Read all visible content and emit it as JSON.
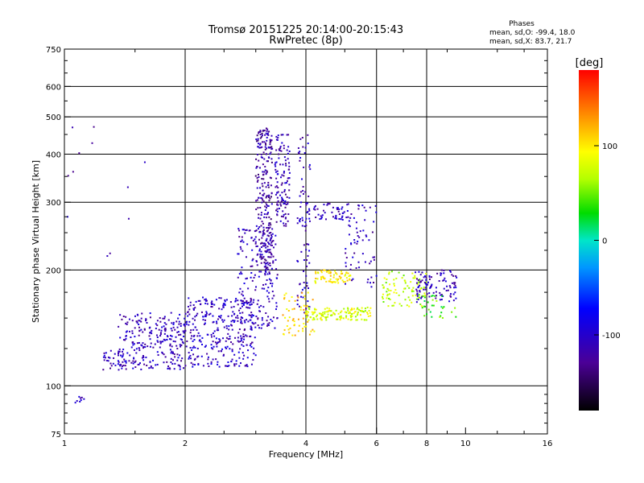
{
  "chart_data": {
    "type": "scatter",
    "title": "Tromsø 20151225 20:14:00-20:15:43",
    "subtitle": "RwPretec (8p)",
    "xlabel": "Frequency [MHz]",
    "ylabel": "Stationary phase Virtual Height [km]",
    "x_scale": "log",
    "y_scale": "log",
    "xlim": [
      1,
      16
    ],
    "ylim": [
      75,
      750
    ],
    "x_ticks": [
      1,
      2,
      4,
      6,
      8,
      10,
      16
    ],
    "y_ticks": [
      75,
      100,
      200,
      300,
      400,
      500,
      600,
      750
    ],
    "grid_x": [
      2,
      4,
      6,
      8
    ],
    "grid_y": [
      100,
      200,
      300,
      400,
      500,
      600
    ],
    "grid": true,
    "phase_stats": {
      "title": "Phases",
      "line_o": "mean, sd,O: -99.4, 18.0",
      "line_x": "mean, sd,X: 83.7, 21.7"
    },
    "colorbar": {
      "label": "[deg]",
      "ticks": [
        100,
        0,
        -100
      ],
      "range": [
        -180,
        180
      ]
    },
    "clusters": [
      {
        "x0": 1.36,
        "x1": 2.0,
        "y0": 110,
        "y1": 155,
        "phase": -110,
        "n": 260
      },
      {
        "x0": 1.25,
        "x1": 1.45,
        "y0": 110,
        "y1": 125,
        "phase": -110,
        "n": 30
      },
      {
        "x0": 2.0,
        "x1": 3.0,
        "y0": 112,
        "y1": 170,
        "phase": -105,
        "n": 320
      },
      {
        "x0": 2.7,
        "x1": 3.4,
        "y0": 140,
        "y1": 260,
        "phase": -110,
        "n": 200
      },
      {
        "x0": 3.0,
        "x1": 3.3,
        "y0": 200,
        "y1": 470,
        "phase": -120,
        "n": 240
      },
      {
        "x0": 3.35,
        "x1": 3.65,
        "y0": 260,
        "y1": 450,
        "phase": -115,
        "n": 120
      },
      {
        "x0": 3.8,
        "x1": 4.1,
        "y0": 150,
        "y1": 450,
        "phase": -110,
        "n": 80
      },
      {
        "x0": 3.5,
        "x1": 4.2,
        "y0": 135,
        "y1": 175,
        "phase": 110,
        "n": 60
      },
      {
        "x0": 4.0,
        "x1": 5.8,
        "y0": 148,
        "y1": 160,
        "phase": 80,
        "n": 130
      },
      {
        "x0": 4.2,
        "x1": 5.2,
        "y0": 185,
        "y1": 200,
        "phase": 100,
        "n": 70
      },
      {
        "x0": 4.0,
        "x1": 5.0,
        "y0": 270,
        "y1": 300,
        "phase": -110,
        "n": 50
      },
      {
        "x0": 5.0,
        "x1": 6.0,
        "y0": 180,
        "y1": 300,
        "phase": -110,
        "n": 70
      },
      {
        "x0": 6.2,
        "x1": 8.0,
        "y0": 160,
        "y1": 200,
        "phase": 70,
        "n": 90
      },
      {
        "x0": 7.5,
        "x1": 9.5,
        "y0": 165,
        "y1": 200,
        "phase": -110,
        "n": 100
      },
      {
        "x0": 7.8,
        "x1": 9.5,
        "y0": 150,
        "y1": 172,
        "phase": 40,
        "n": 30
      },
      {
        "x0": 1.0,
        "x1": 1.6,
        "y0": 200,
        "y1": 490,
        "phase": -110,
        "n": 12
      },
      {
        "x0": 1.06,
        "x1": 1.12,
        "y0": 90,
        "y1": 94,
        "phase": -110,
        "n": 8
      }
    ]
  }
}
